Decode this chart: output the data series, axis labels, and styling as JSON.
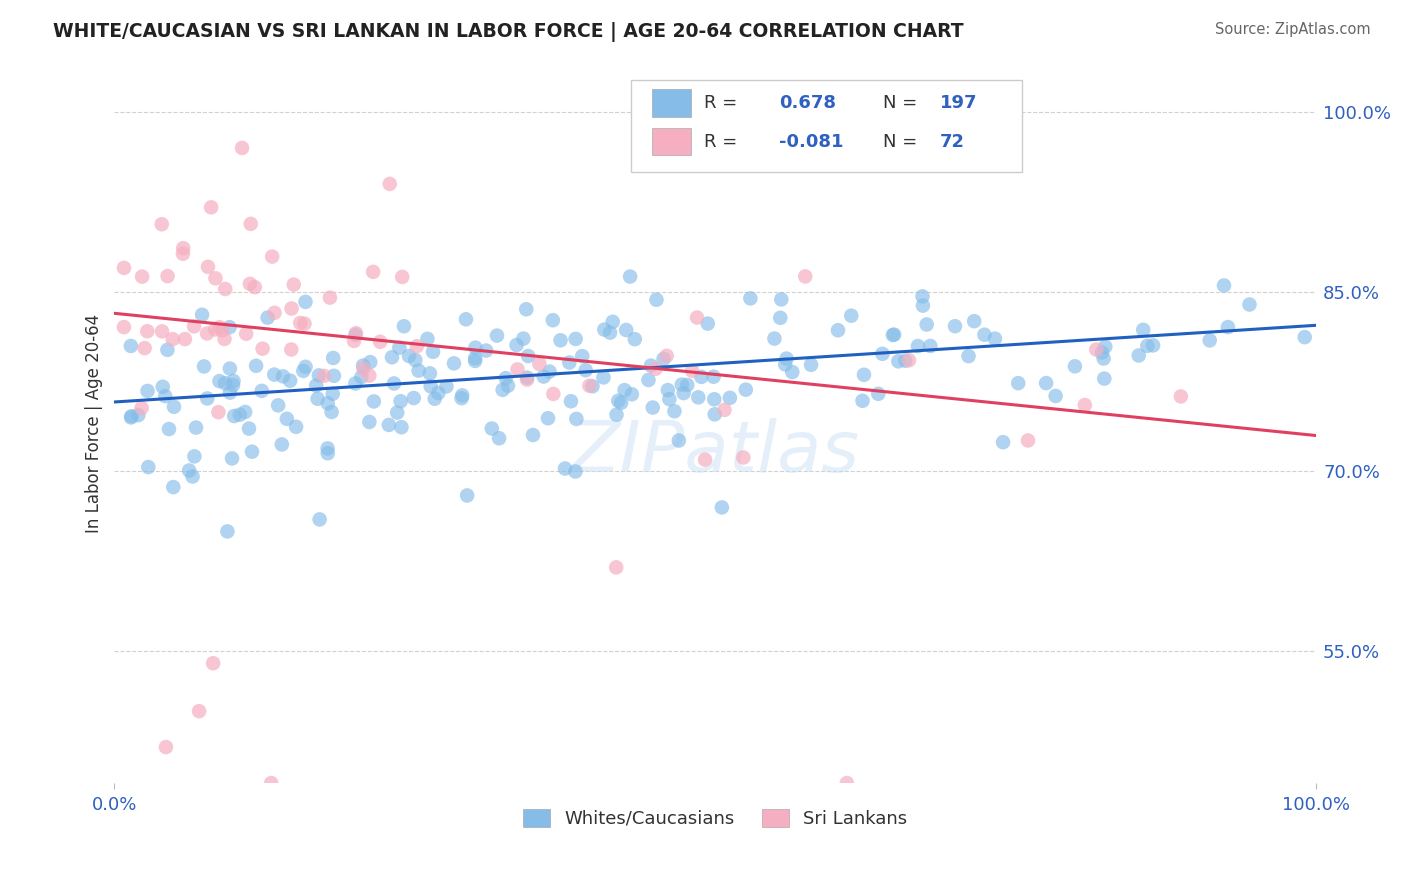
{
  "title": "WHITE/CAUCASIAN VS SRI LANKAN IN LABOR FORCE | AGE 20-64 CORRELATION CHART",
  "source": "Source: ZipAtlas.com",
  "ylabel": "In Labor Force | Age 20-64",
  "xmin": 0.0,
  "xmax": 1.0,
  "ymin": 0.44,
  "ymax": 1.04,
  "ytick_vals": [
    0.55,
    0.7,
    0.85,
    1.0
  ],
  "ytick_labels": [
    "55.0%",
    "70.0%",
    "85.0%",
    "100.0%"
  ],
  "xtick_labels": [
    "0.0%",
    "100.0%"
  ],
  "blue_R": 0.678,
  "blue_N": 197,
  "pink_R": -0.081,
  "pink_N": 72,
  "blue_color": "#85bce8",
  "pink_color": "#f5afc0",
  "blue_line_color": "#2060c0",
  "pink_line_color": "#e04060",
  "legend_label_blue": "Whites/Caucasians",
  "legend_label_pink": "Sri Lankans",
  "watermark": "ZIPatlas",
  "background_color": "#ffffff",
  "grid_color": "#cccccc",
  "title_color": "#222222",
  "axis_label_color": "#333333",
  "tick_label_color": "#3060c0",
  "blue_line_start_y": 0.758,
  "blue_line_end_y": 0.822,
  "pink_line_start_y": 0.832,
  "pink_line_end_y": 0.73
}
